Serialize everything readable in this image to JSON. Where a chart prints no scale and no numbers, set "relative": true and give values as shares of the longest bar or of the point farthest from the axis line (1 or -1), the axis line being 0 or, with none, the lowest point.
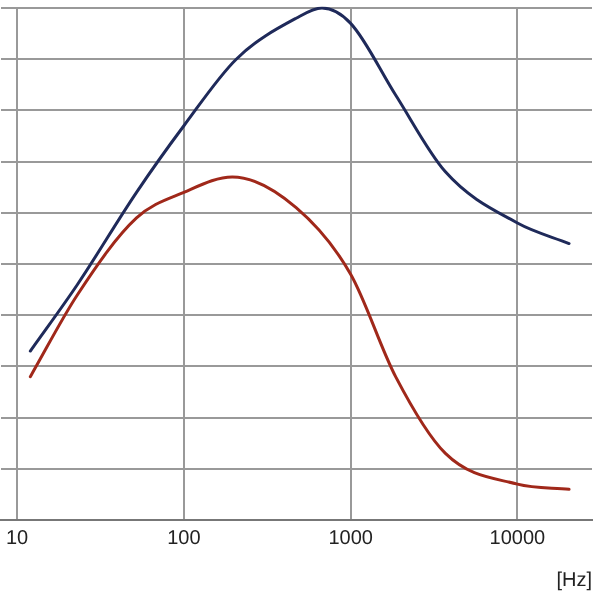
{
  "chart_data": {
    "type": "line",
    "xlabel": "[Hz]",
    "relative": true,
    "log": "x",
    "xlim": [
      8,
      28000
    ],
    "xticks": [
      10,
      100,
      1000,
      10000
    ],
    "tick_labels": "x",
    "grid": true,
    "legend": false,
    "marker": "none",
    "line_style": "solid",
    "series": [
      {
        "color": "#1f2a5a",
        "x": [
          12,
          23,
          52,
          100,
          206,
          471,
          673,
          1000,
          1860,
          3700,
          10000,
          20400
        ],
        "values": [
          0.33,
          0.46,
          0.64,
          0.77,
          0.9,
          0.98,
          1,
          0.97,
          0.83,
          0.68,
          0.58,
          0.54
        ]
      },
      {
        "color": "#a0281a",
        "x": [
          12,
          23,
          52,
          100,
          195,
          471,
          1000,
          1860,
          3700,
          10000,
          20400
        ],
        "values": [
          0.28,
          0.44,
          0.59,
          0.64,
          0.67,
          0.61,
          0.48,
          0.28,
          0.13,
          0.07,
          0.06
        ]
      }
    ]
  }
}
